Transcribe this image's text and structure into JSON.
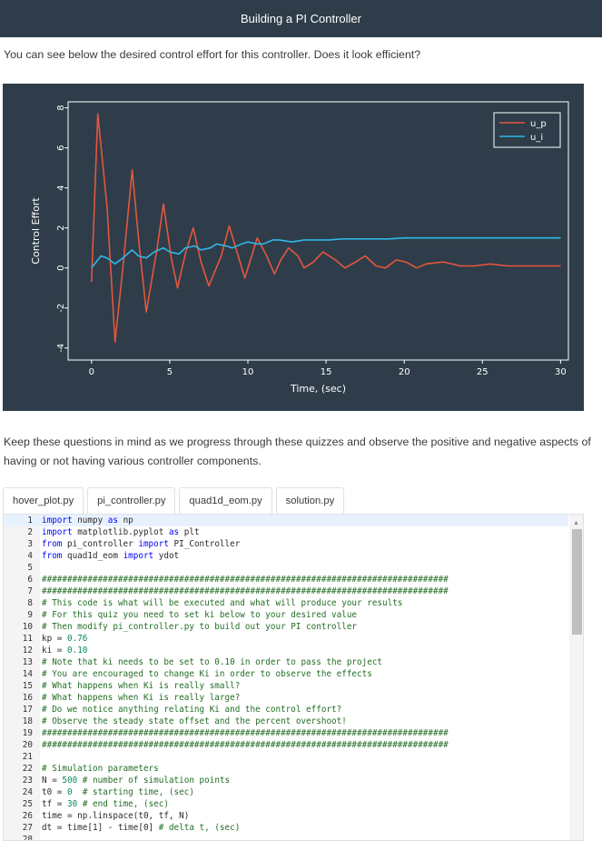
{
  "header": {
    "title": "Building a PI Controller"
  },
  "intro": "You can see below the desired control effort for this controller. Does it look efficient?",
  "chart_data": {
    "type": "line",
    "title": "",
    "xlabel": "Time, (sec)",
    "ylabel": "Control Effort",
    "xlim": [
      -1.5,
      30.5
    ],
    "ylim": [
      -4.6,
      8.3
    ],
    "xticks": [
      0,
      5,
      10,
      15,
      20,
      25,
      30
    ],
    "yticks": [
      8,
      6,
      4,
      2,
      0,
      -2,
      -4
    ],
    "legend": "top-right",
    "grid": false,
    "series": [
      {
        "name": "u_p",
        "color": "#e5563f",
        "x": [
          0,
          0.4,
          1.0,
          1.5,
          2.0,
          2.6,
          3.0,
          3.5,
          4.2,
          4.6,
          5.1,
          5.5,
          6.0,
          6.5,
          7.0,
          7.5,
          8.3,
          8.8,
          9.3,
          9.8,
          10.2,
          10.6,
          11.2,
          11.7,
          12.1,
          12.6,
          13.2,
          13.6,
          14.2,
          14.8,
          15.6,
          16.2,
          16.9,
          17.5,
          18.2,
          18.8,
          19.5,
          20.1,
          20.8,
          21.4,
          22.5,
          23.6,
          24.5,
          25.5,
          26.6,
          27.7,
          28.7,
          30
        ],
        "y": [
          -0.7,
          7.7,
          3.0,
          -3.7,
          0.0,
          4.9,
          1.5,
          -2.2,
          1.0,
          3.2,
          0.5,
          -1.0,
          0.7,
          2.0,
          0.3,
          -0.9,
          0.6,
          2.1,
          0.8,
          -0.5,
          0.5,
          1.5,
          0.6,
          -0.3,
          0.4,
          1.0,
          0.6,
          0.0,
          0.3,
          0.8,
          0.4,
          0.0,
          0.3,
          0.6,
          0.1,
          0.0,
          0.4,
          0.3,
          0.0,
          0.2,
          0.3,
          0.1,
          0.1,
          0.2,
          0.1,
          0.1,
          0.1,
          0.1
        ]
      },
      {
        "name": "u_i",
        "color": "#2eb8e6",
        "x": [
          0,
          0.6,
          1.0,
          1.5,
          2.0,
          2.6,
          3.0,
          3.5,
          4.0,
          4.6,
          5.0,
          5.6,
          6.0,
          6.6,
          7.0,
          7.6,
          8.0,
          8.6,
          9.0,
          9.6,
          10.0,
          10.6,
          11.0,
          11.6,
          12.0,
          12.8,
          13.6,
          14.4,
          15.2,
          16.0,
          17.0,
          18.0,
          19.0,
          20.0,
          21.0,
          22.0,
          24.0,
          26.0,
          28.0,
          30.0
        ],
        "y": [
          0.0,
          0.6,
          0.5,
          0.2,
          0.5,
          0.9,
          0.6,
          0.5,
          0.8,
          1.0,
          0.8,
          0.7,
          1.0,
          1.1,
          0.9,
          1.0,
          1.2,
          1.1,
          1.0,
          1.2,
          1.3,
          1.2,
          1.2,
          1.4,
          1.4,
          1.3,
          1.4,
          1.4,
          1.4,
          1.45,
          1.45,
          1.45,
          1.45,
          1.5,
          1.5,
          1.5,
          1.5,
          1.5,
          1.5,
          1.5
        ]
      }
    ]
  },
  "paragraph": "Keep these questions in mind as we progress through these quizzes and observe the positive and negative aspects of having or not having various controller components.",
  "tabs": [
    {
      "label": "hover_plot.py"
    },
    {
      "label": "pi_controller.py"
    },
    {
      "label": "quad1d_eom.py"
    },
    {
      "label": "solution.py"
    }
  ],
  "code_lines": [
    "import numpy as np",
    "import matplotlib.pyplot as plt",
    "from pi_controller import PI_Controller",
    "from quad1d_eom import ydot",
    "",
    "################################################################################",
    "################################################################################",
    "# This code is what will be executed and what will produce your results",
    "# For this quiz you need to set ki below to your desired value",
    "# Then modify pi_controller.py to build out your PI controller",
    "kp = 0.76",
    "ki = 0.10",
    "# Note that ki needs to be set to 0.10 in order to pass the project",
    "# You are encouraged to change Ki in order to observe the effects",
    "# What happens when Ki is really small?",
    "# What happens when Ki is really large?",
    "# Do we notice anything relating Ki and the control effort?",
    "# Observe the steady state offset and the percent overshoot!",
    "################################################################################",
    "################################################################################",
    "",
    "# Simulation parameters",
    "N = 500 # number of simulation points",
    "t0 = 0  # starting time, (sec)",
    "tf = 30 # end time, (sec)",
    "time = np.linspace(t0, tf, N)",
    "dt = time[1] - time[0] # delta t, (sec)",
    ""
  ],
  "line_numbers": [
    "1",
    "2",
    "3",
    "4",
    "5",
    "6",
    "7",
    "8",
    "9",
    "10",
    "11",
    "12",
    "13",
    "14",
    "15",
    "16",
    "17",
    "18",
    "19",
    "20",
    "21",
    "22",
    "23",
    "24",
    "25",
    "26",
    "27",
    "28"
  ]
}
